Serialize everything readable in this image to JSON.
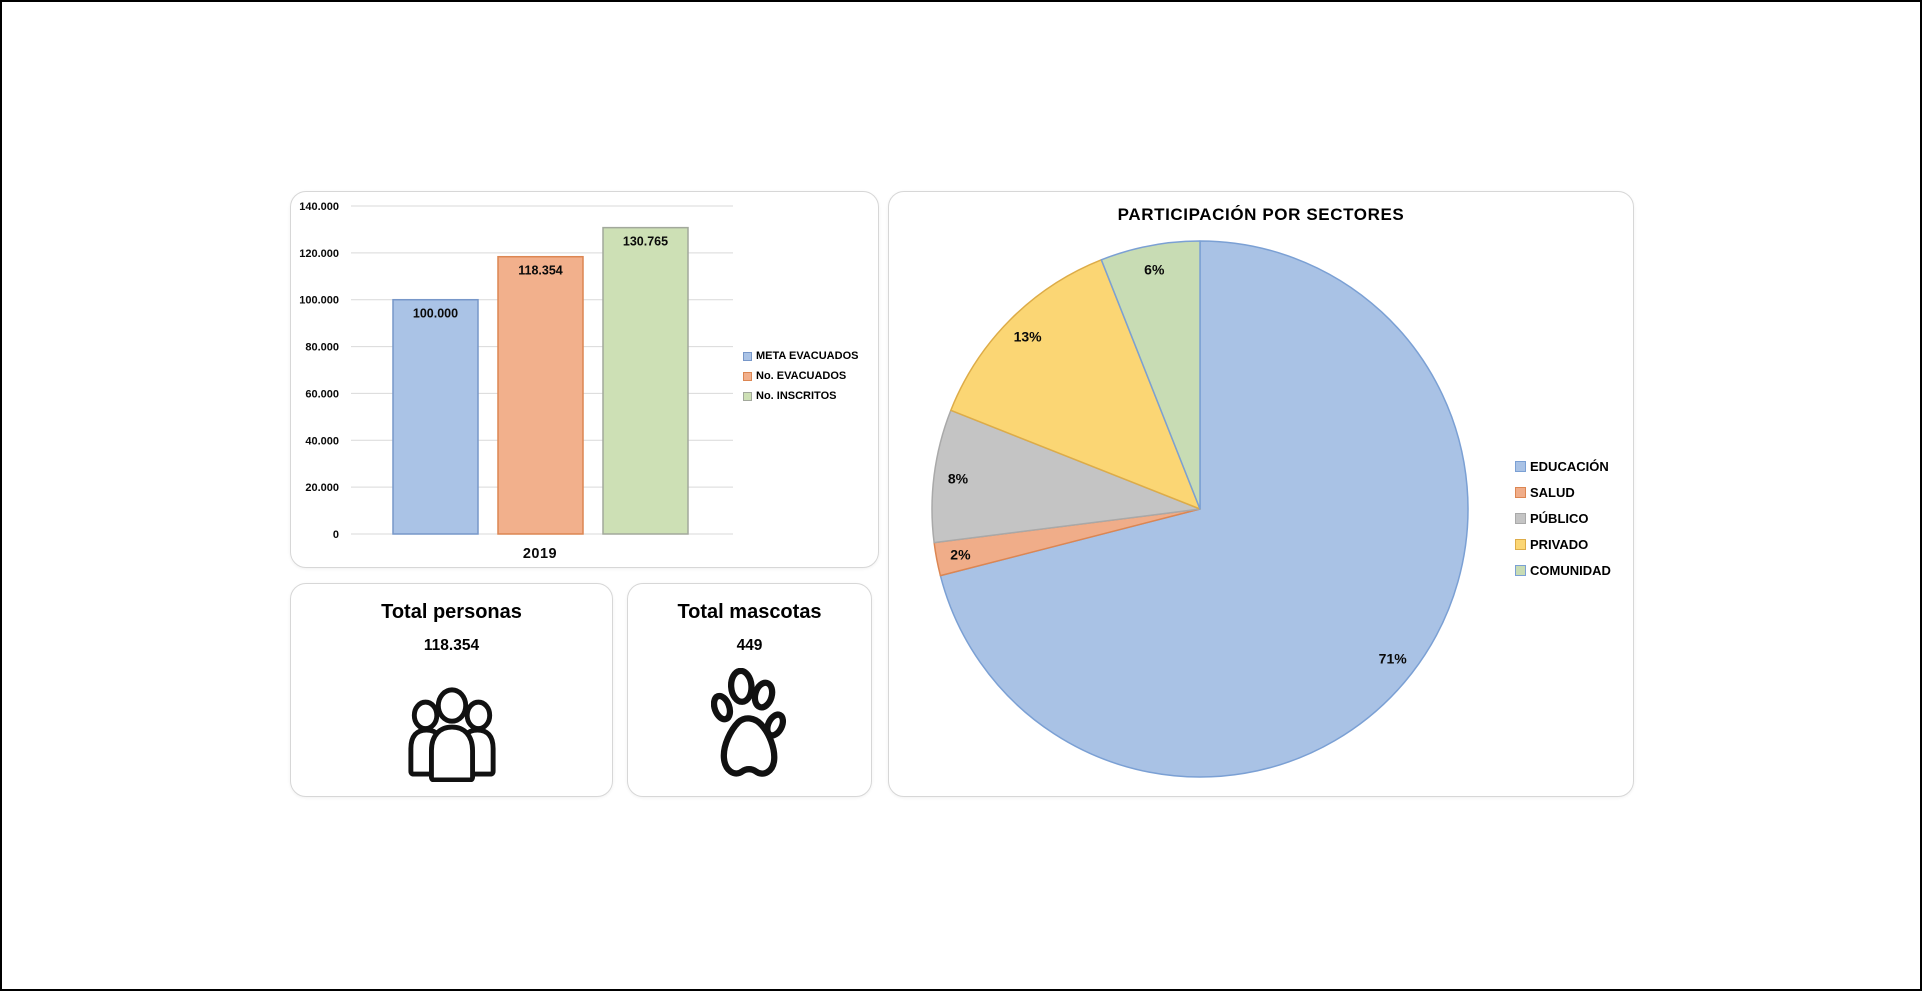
{
  "frame": {
    "border_color": "#000000",
    "background": "#FFFFFF"
  },
  "cards": [
    {
      "title": "Total personas",
      "value": "118.354",
      "icon": "people-icon"
    },
    {
      "title": "Total mascotas",
      "value": "449",
      "icon": "paw-icon"
    }
  ],
  "chart_data": [
    {
      "type": "bar",
      "title": "",
      "categories": [
        "2019"
      ],
      "series": [
        {
          "name": "META EVACUADOS",
          "values": [
            100000
          ],
          "label": "100.000",
          "fill": "#AAC3E6",
          "border": "#7797C9"
        },
        {
          "name": "No. EVACUADOS",
          "values": [
            118354
          ],
          "label": "118.354",
          "fill": "#F2B08C",
          "border": "#DC8652"
        },
        {
          "name": "No. INSCRITOS",
          "values": [
            130765
          ],
          "label": "130.765",
          "fill": "#CDE0B5",
          "border": "#A2A89C"
        }
      ],
      "xlabel": "",
      "ylabel": "",
      "ylim": [
        0,
        140000
      ],
      "ytick_step": 20000,
      "ytick_labels": [
        "0",
        "20.000",
        "40.000",
        "60.000",
        "80.000",
        "100.000",
        "120.000",
        "140.000"
      ],
      "grid": true,
      "gridline_color": "#D9D9D9",
      "legend_position": "right"
    },
    {
      "type": "pie",
      "title": "PARTICIPACIÓN POR SECTORES",
      "start_angle_deg": 0,
      "direction": "clockwise",
      "slices": [
        {
          "name": "EDUCACIÓN",
          "value_pct": 71,
          "label": "71%",
          "fill": "#A9C2E5",
          "border": "#7BA0D4"
        },
        {
          "name": "SALUD",
          "value_pct": 2,
          "label": "2%",
          "fill": "#F0AD89",
          "border": "#DC8652"
        },
        {
          "name": "PÚBLICO",
          "value_pct": 8,
          "label": "8%",
          "fill": "#C4C4C4",
          "border": "#A9A9A9"
        },
        {
          "name": "PRIVADO",
          "value_pct": 13,
          "label": "13%",
          "fill": "#FBD674",
          "border": "#DDAC48"
        },
        {
          "name": "COMUNIDAD",
          "value_pct": 6,
          "label": "6%",
          "fill": "#C8DCB4",
          "border": "#7BA0D4"
        }
      ],
      "legend_position": "right"
    }
  ]
}
